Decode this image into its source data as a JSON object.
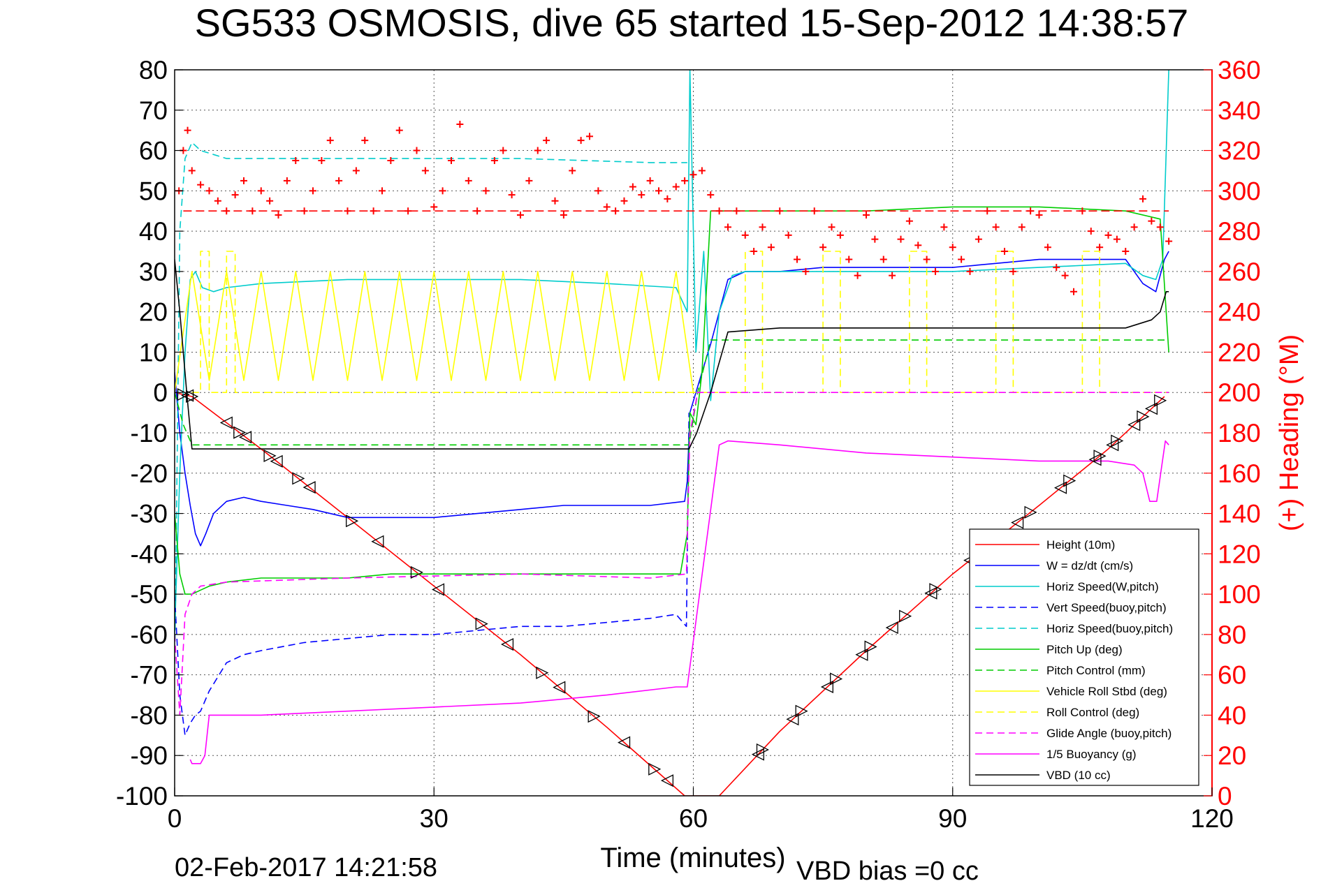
{
  "chart_data": {
    "type": "line",
    "title": "SG533 OSMOSIS, dive 65 started 15-Sep-2012 14:38:57",
    "xlabel": "Time (minutes)",
    "ylabel": "",
    "y2label": "(+) Heading (°M)",
    "footer_left": "02-Feb-2017 14:21:58",
    "footer_right": "VBD bias =0 cc",
    "xlim": [
      0,
      120
    ],
    "ylim": [
      -100,
      80
    ],
    "y2lim": [
      0,
      360
    ],
    "xticks": [
      "0",
      "30",
      "60",
      "90",
      "120"
    ],
    "yticks": [
      "80",
      "70",
      "60",
      "50",
      "40",
      "30",
      "20",
      "10",
      "0",
      "-10",
      "-20",
      "-30",
      "-40",
      "-50",
      "-60",
      "-70",
      "-80",
      "-90",
      "-100"
    ],
    "y2ticks": [
      "360",
      "340",
      "320",
      "300",
      "280",
      "260",
      "240",
      "220",
      "200",
      "180",
      "160",
      "140",
      "120",
      "100",
      "80",
      "60",
      "40",
      "20",
      "0"
    ],
    "grid": true,
    "legend_position": "bottom-right",
    "colors": {
      "heading": "#ff0000",
      "right_axis": "#ff0000"
    },
    "series": [
      {
        "name": "Height (10m)",
        "color": "#ff0000",
        "dash": "solid",
        "x": [
          0,
          2,
          10,
          20,
          30,
          40,
          50,
          59,
          63,
          70,
          80,
          90,
          100,
          108,
          114.5
        ],
        "y": [
          0,
          -1,
          -14,
          -31,
          -48,
          -65,
          -83,
          -100,
          -100,
          -84,
          -64,
          -45,
          -28,
          -14,
          -1
        ]
      },
      {
        "name": "W = dz/dt (cm/s)",
        "color": "#0000ff",
        "dash": "solid",
        "x": [
          0,
          0.6,
          1.2,
          1.8,
          2.4,
          3,
          3.6,
          4.5,
          6,
          8,
          10,
          13,
          16,
          20,
          25,
          30,
          35,
          40,
          45,
          50,
          55,
          59,
          59.3,
          59.6,
          60.3,
          61,
          62,
          63,
          64,
          66,
          70,
          75,
          80,
          85,
          90,
          95,
          100,
          105,
          110,
          112,
          113.5,
          114.5,
          115
        ],
        "y": [
          5,
          -10,
          -20,
          -28,
          -35,
          -38,
          -35,
          -30,
          -27,
          -26,
          -27,
          -28,
          -29,
          -31,
          -31,
          -31,
          -30,
          -29,
          -28,
          -28,
          -28,
          -27,
          -22,
          -5,
          0,
          5,
          12,
          20,
          28,
          30,
          30,
          31,
          31,
          31,
          31,
          32,
          33,
          33,
          33,
          27,
          25,
          33,
          35
        ]
      },
      {
        "name": "Horiz Speed(W,pitch)",
        "color": "#00cccc",
        "dash": "solid",
        "x": [
          0,
          0.6,
          1.2,
          1.8,
          2.4,
          3.2,
          4.5,
          6,
          10,
          20,
          30,
          40,
          50,
          58,
          59.3,
          59.6,
          60.3,
          61.2,
          62,
          63,
          64.5,
          66,
          70,
          80,
          90,
          100,
          110,
          112,
          113.5,
          114.3,
          115
        ],
        "y": [
          -60,
          -20,
          10,
          28,
          30,
          26,
          25,
          26,
          27,
          28,
          28,
          28,
          27,
          26,
          20,
          80,
          10,
          35,
          -2,
          20,
          29,
          30,
          30,
          30,
          30,
          31,
          32,
          29,
          28,
          33,
          80
        ]
      },
      {
        "name": "Vert Speed(buoy,pitch)",
        "color": "#0000ff",
        "dash": "dashed",
        "x": [
          0,
          0.6,
          1.2,
          1.8,
          2.4,
          3,
          4,
          6,
          8,
          10,
          15,
          20,
          25,
          30,
          35,
          40,
          45,
          50,
          55,
          58,
          59.2,
          59.5
        ],
        "y": [
          -50,
          -75,
          -85,
          -82,
          -80,
          -79,
          -74,
          -67,
          -65,
          -64,
          -62,
          -61,
          -60,
          -60,
          -59,
          -58,
          -58,
          -57,
          -56,
          -55,
          -58,
          -5
        ]
      },
      {
        "name": "Horiz Speed(buoy,pitch)",
        "color": "#00cccc",
        "dash": "dashed",
        "x": [
          0,
          0.6,
          1.2,
          2,
          3,
          6,
          20,
          40,
          55,
          59.3
        ],
        "y": [
          -70,
          40,
          58,
          62,
          60,
          58,
          58,
          58,
          57,
          57
        ]
      },
      {
        "name": "Pitch Up (deg)",
        "color": "#00cc00",
        "dash": "solid",
        "x": [
          0,
          0.6,
          1.2,
          2,
          3,
          4,
          6,
          10,
          15,
          20,
          25,
          30,
          35,
          40,
          45,
          50,
          55,
          58.5,
          59.3,
          59.6,
          60.3,
          61,
          62,
          63,
          70,
          80,
          90,
          100,
          110,
          114,
          115
        ],
        "y": [
          -30,
          -45,
          -50,
          -50,
          -49,
          -48,
          -47,
          -46,
          -46,
          -46,
          -45,
          -45,
          -45,
          -45,
          -45,
          -45,
          -45,
          -45,
          -35,
          -5,
          -8,
          5,
          45,
          45,
          45,
          45,
          46,
          46,
          45,
          43,
          10
        ]
      },
      {
        "name": "Pitch Control (mm)",
        "color": "#00cc00",
        "dash": "dashed",
        "x": [
          0,
          1,
          2,
          59.5,
          60.5,
          62,
          115
        ],
        "y": [
          0,
          -8,
          -13,
          -13,
          0,
          13,
          13
        ]
      },
      {
        "name": "Vehicle Roll Stbd (deg)",
        "color": "#ffff00",
        "dash": "solid",
        "x": [
          0,
          2,
          4,
          6,
          8,
          10,
          12,
          14,
          16,
          18,
          20,
          22,
          24,
          26,
          28,
          30,
          32,
          34,
          36,
          38,
          40,
          42,
          44,
          46,
          48,
          50,
          52,
          54,
          56,
          58,
          60
        ],
        "y": [
          0,
          30,
          3,
          30,
          3,
          30,
          3,
          30,
          3,
          30,
          3,
          30,
          3,
          30,
          3,
          30,
          3,
          30,
          3,
          30,
          3,
          30,
          3,
          30,
          3,
          30,
          3,
          30,
          3,
          30,
          0
        ]
      },
      {
        "name": "Roll Control (deg)",
        "color": "#ffff00",
        "dash": "dashed",
        "x": [
          2,
          3,
          3,
          4,
          4,
          6,
          6,
          7,
          7,
          60,
          60,
          66,
          66,
          68,
          68,
          75,
          75,
          77,
          77,
          85,
          85,
          87,
          87,
          95,
          95,
          97,
          97,
          105,
          105,
          107,
          107,
          115
        ],
        "y": [
          0,
          0,
          35,
          35,
          0,
          0,
          35,
          35,
          0,
          0,
          0,
          0,
          35,
          35,
          0,
          0,
          35,
          35,
          0,
          0,
          35,
          35,
          0,
          0,
          35,
          35,
          0,
          0,
          35,
          35,
          0,
          0
        ]
      },
      {
        "name": "Glide Angle (buoy,pitch)",
        "color": "#ff00ff",
        "dash": "dashed",
        "x": [
          0,
          0.6,
          1.2,
          2,
          3,
          6,
          20,
          40,
          55,
          59.2,
          59.6,
          60.5,
          115
        ],
        "y": [
          -60,
          -80,
          -55,
          -50,
          -48,
          -47,
          -46,
          -45,
          -46,
          -45,
          -10,
          0,
          0
        ]
      },
      {
        "name": "1/5 Buoyancy (g)",
        "color": "#ff00ff",
        "dash": "solid",
        "x": [
          1.8,
          2,
          3,
          3.5,
          4,
          10,
          20,
          30,
          40,
          50,
          58,
          59.3,
          63,
          64,
          70,
          80,
          90,
          100,
          108,
          111,
          112,
          112.8,
          113.6,
          114.2,
          114.6,
          115
        ],
        "y": [
          -91,
          -92,
          -92,
          -90,
          -80,
          -80,
          -79,
          -78,
          -77,
          -75,
          -73,
          -73,
          -13,
          -12,
          -13,
          -15,
          -16,
          -17,
          -17,
          -18,
          -20,
          -27,
          -27,
          -18,
          -12,
          -13
        ]
      },
      {
        "name": "VBD (10 cc)",
        "color": "#000000",
        "dash": "solid",
        "x": [
          0,
          0.6,
          1.4,
          2,
          59.5,
          60.4,
          62,
          64,
          70,
          90,
          110,
          113,
          114,
          114.7,
          115
        ],
        "y": [
          33,
          20,
          0,
          -14,
          -14,
          -10,
          0,
          15,
          16,
          16,
          16,
          18,
          20,
          25,
          25
        ]
      }
    ],
    "heading": {
      "name": "(+) Heading (°M)",
      "marker": "+",
      "color": "#ff0000",
      "reference_y2": 290,
      "x": [
        0.5,
        1,
        1.5,
        2,
        3,
        4,
        5,
        6,
        7,
        8,
        9,
        10,
        11,
        12,
        13,
        14,
        15,
        16,
        17,
        18,
        19,
        20,
        21,
        22,
        23,
        24,
        25,
        26,
        27,
        28,
        29,
        30,
        31,
        32,
        33,
        34,
        35,
        36,
        37,
        38,
        39,
        40,
        41,
        42,
        43,
        44,
        45,
        46,
        47,
        48,
        49,
        50,
        51,
        52,
        53,
        54,
        55,
        56,
        57,
        58,
        59,
        60,
        61,
        62,
        63,
        64,
        65,
        66,
        67,
        68,
        69,
        70,
        71,
        72,
        73,
        74,
        75,
        76,
        77,
        78,
        79,
        80,
        81,
        82,
        83,
        84,
        85,
        86,
        87,
        88,
        89,
        90,
        91,
        92,
        93,
        94,
        95,
        96,
        97,
        98,
        99,
        100,
        101,
        102,
        103,
        104,
        105,
        106,
        107,
        108,
        109,
        110,
        111,
        112,
        113,
        114,
        115
      ],
      "y2": [
        300,
        320,
        330,
        310,
        303,
        300,
        295,
        290,
        298,
        305,
        290,
        300,
        295,
        288,
        305,
        315,
        290,
        300,
        315,
        325,
        305,
        290,
        310,
        325,
        290,
        300,
        315,
        330,
        290,
        320,
        310,
        292,
        300,
        315,
        333,
        305,
        290,
        300,
        315,
        320,
        298,
        288,
        305,
        320,
        325,
        295,
        288,
        310,
        325,
        327,
        300,
        292,
        290,
        295,
        302,
        298,
        305,
        300,
        296,
        302,
        305,
        308,
        310,
        298,
        290,
        282,
        290,
        278,
        270,
        282,
        272,
        290,
        278,
        266,
        260,
        290,
        272,
        282,
        278,
        266,
        258,
        288,
        276,
        266,
        258,
        276,
        285,
        273,
        266,
        260,
        282,
        272,
        266,
        260,
        276,
        290,
        282,
        270,
        260,
        282,
        290,
        288,
        272,
        262,
        258,
        250,
        290,
        280,
        272,
        278,
        276,
        270,
        282,
        296,
        285,
        282,
        275
      ]
    },
    "markers": {
      "symbol": "triangle",
      "color": "#000000",
      "descent_x": [
        1,
        1.5,
        2,
        6,
        7.5,
        8.2,
        11,
        11.8,
        14.3,
        15.6,
        20.5,
        23.5,
        28,
        30.5,
        35.5,
        38.5,
        42.5,
        44.5,
        48.5,
        52,
        55.5,
        57
      ],
      "ascent_x": [
        67.5,
        68,
        71.5,
        72.5,
        75.5,
        76.5,
        79.5,
        80.5,
        83,
        84.5,
        87.5,
        88,
        92,
        93.5,
        97.5,
        99,
        102.5,
        103.5,
        106.5,
        107,
        108.5,
        109,
        111,
        112,
        113,
        114
      ]
    },
    "legend": [
      "Height (10m)",
      "W = dz/dt (cm/s)",
      "Horiz Speed(W,pitch)",
      "Vert Speed(buoy,pitch)",
      "Horiz Speed(buoy,pitch)",
      "Pitch Up (deg)",
      "Pitch Control (mm)",
      "Vehicle Roll Stbd (deg)",
      "Roll Control (deg)",
      "Glide Angle (buoy,pitch)",
      "1/5 Buoyancy (g)",
      "VBD (10 cc)"
    ]
  }
}
